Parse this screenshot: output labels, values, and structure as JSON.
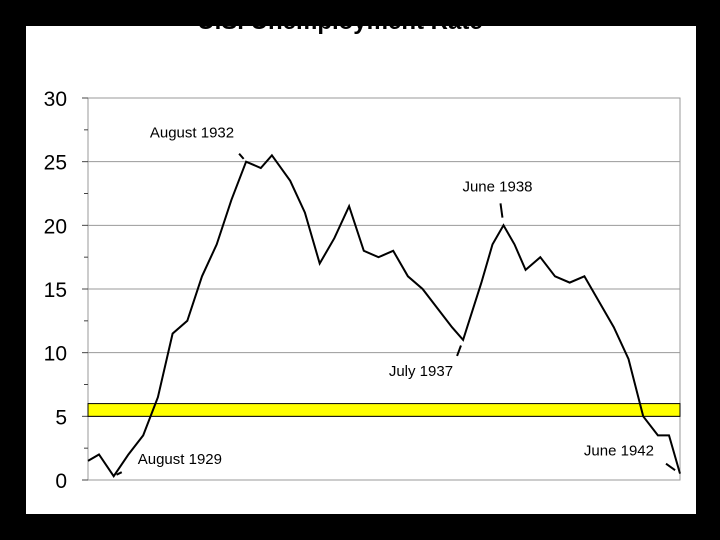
{
  "chart_data": {
    "type": "line",
    "title": "U.S. Unemployment Rate",
    "xlabel": "",
    "ylabel": "",
    "ylim": [
      0,
      30
    ],
    "yticks": [
      0,
      5,
      10,
      15,
      20,
      25,
      30
    ],
    "grid": "horizontal",
    "highlight_band": {
      "from": 5,
      "to": 6,
      "color": "#ffff00"
    },
    "series": [
      {
        "x": [
          "1929-01",
          "1929-04",
          "1929-08",
          "1929-12",
          "1930-04",
          "1930-08",
          "1930-12",
          "1931-04",
          "1931-08",
          "1931-12",
          "1932-04",
          "1932-08",
          "1932-12",
          "1933-03",
          "1933-08",
          "1933-12",
          "1934-04",
          "1934-08",
          "1934-12",
          "1935-04",
          "1935-08",
          "1935-12",
          "1936-04",
          "1936-08",
          "1936-12",
          "1937-04",
          "1937-07",
          "1937-12",
          "1938-03",
          "1938-06",
          "1938-09",
          "1938-12",
          "1939-04",
          "1939-08",
          "1939-12",
          "1940-04",
          "1940-08",
          "1940-12",
          "1941-04",
          "1941-08",
          "1941-12",
          "1942-03",
          "1942-06"
        ],
        "values": [
          1.5,
          2.0,
          0.3,
          2.0,
          3.5,
          6.5,
          11.5,
          12.5,
          16.0,
          18.5,
          22.0,
          25.0,
          24.5,
          25.5,
          23.5,
          21.0,
          17.0,
          19.0,
          21.5,
          18.0,
          17.5,
          18.0,
          16.0,
          15.0,
          13.5,
          12.0,
          11.0,
          15.5,
          18.5,
          20.0,
          18.5,
          16.5,
          17.5,
          16.0,
          15.5,
          16.0,
          14.0,
          12.0,
          9.5,
          5.0,
          3.5,
          3.5,
          0.5
        ],
        "color": "#000000"
      }
    ],
    "annotations": [
      {
        "label": "August 1929",
        "x": "1929-08",
        "y": 0.3
      },
      {
        "label": "August 1932",
        "x": "1932-08",
        "y": 25.0
      },
      {
        "label": "July 1937",
        "x": "1937-07",
        "y": 11.0
      },
      {
        "label": "June 1938",
        "x": "1938-06",
        "y": 20.0
      },
      {
        "label": "June 1942",
        "x": "1942-06",
        "y": 0.5
      }
    ]
  }
}
